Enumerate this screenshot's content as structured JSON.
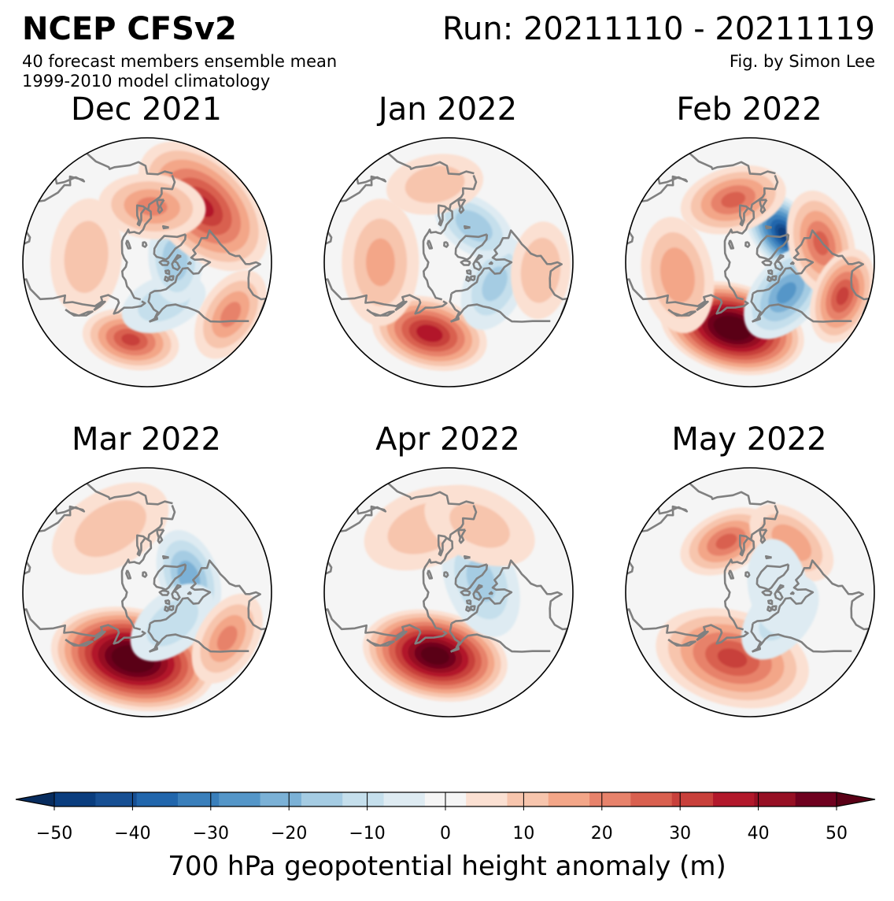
{
  "header": {
    "title": "NCEP CFSv2",
    "run": "Run: 20211110 - 20211119",
    "subtitle_1": "40 forecast members ensemble mean",
    "subtitle_2": "1999-2010 model climatology",
    "credit": "Fig. by Simon Lee"
  },
  "panels": [
    {
      "month": "Dec 2021",
      "anomalies": [
        {
          "lat": 42,
          "lon": 178,
          "value": 30,
          "spread": 1.0
        },
        {
          "lat": 62,
          "lon": -148,
          "value": -12,
          "spread": 0.9
        },
        {
          "lat": 72,
          "lon": -75,
          "value": -18,
          "spread": 0.9
        },
        {
          "lat": 42,
          "lon": -35,
          "value": 35,
          "spread": 1.6
        },
        {
          "lat": 55,
          "lon": 5,
          "value": 20,
          "spread": 1.1
        },
        {
          "lat": 52,
          "lon": 95,
          "value": 12,
          "spread": 1.2
        },
        {
          "lat": 32,
          "lon": -112,
          "value": 20,
          "spread": 1.0
        }
      ]
    },
    {
      "month": "Jan 2022",
      "anomalies": [
        {
          "lat": 45,
          "lon": 175,
          "value": 38,
          "spread": 1.2
        },
        {
          "lat": 58,
          "lon": -105,
          "value": -15,
          "spread": 1.0
        },
        {
          "lat": 62,
          "lon": -25,
          "value": -18,
          "spread": 0.9
        },
        {
          "lat": 48,
          "lon": 100,
          "value": 15,
          "spread": 1.3
        },
        {
          "lat": 35,
          "lon": -85,
          "value": 14,
          "spread": 1.0
        },
        {
          "lat": 42,
          "lon": 20,
          "value": 12,
          "spread": 1.0
        }
      ]
    },
    {
      "month": "Feb 2022",
      "anomalies": [
        {
          "lat": 48,
          "lon": 175,
          "value": 60,
          "spread": 1.5
        },
        {
          "lat": 62,
          "lon": -40,
          "value": -45,
          "spread": 1.0
        },
        {
          "lat": 60,
          "lon": -120,
          "value": -25,
          "spread": 1.1
        },
        {
          "lat": 45,
          "lon": -65,
          "value": 25,
          "spread": 1.1
        },
        {
          "lat": 50,
          "lon": 25,
          "value": 25,
          "spread": 1.1
        },
        {
          "lat": 45,
          "lon": 110,
          "value": 18,
          "spread": 1.2
        },
        {
          "lat": 32,
          "lon": -100,
          "value": 30,
          "spread": 1.0
        }
      ]
    },
    {
      "month": "Mar 2022",
      "anomalies": [
        {
          "lat": 48,
          "lon": 178,
          "value": 60,
          "spread": 1.7
        },
        {
          "lat": 62,
          "lon": -60,
          "value": -22,
          "spread": 1.0
        },
        {
          "lat": 65,
          "lon": -130,
          "value": -12,
          "spread": 1.0
        },
        {
          "lat": 45,
          "lon": 40,
          "value": 12,
          "spread": 1.3
        },
        {
          "lat": 35,
          "lon": -110,
          "value": 20,
          "spread": 1.0
        }
      ]
    },
    {
      "month": "Apr 2022",
      "anomalies": [
        {
          "lat": 50,
          "lon": 178,
          "value": 55,
          "spread": 1.5
        },
        {
          "lat": 68,
          "lon": -60,
          "value": -15,
          "spread": 1.2
        },
        {
          "lat": 48,
          "lon": 30,
          "value": 12,
          "spread": 1.3
        },
        {
          "lat": 45,
          "lon": -15,
          "value": 10,
          "spread": 1.2
        }
      ]
    },
    {
      "month": "May 2022",
      "anomalies": [
        {
          "lat": 48,
          "lon": 175,
          "value": 30,
          "spread": 1.6
        },
        {
          "lat": 55,
          "lon": 35,
          "value": 25,
          "spread": 1.0
        },
        {
          "lat": 50,
          "lon": -30,
          "value": 18,
          "spread": 1.0
        },
        {
          "lat": 65,
          "lon": -120,
          "value": -10,
          "spread": 1.0
        },
        {
          "lat": 72,
          "lon": -70,
          "value": -8,
          "spread": 1.0
        }
      ]
    }
  ],
  "colorbar": {
    "ticks": [
      "−50",
      "−40",
      "−30",
      "−20",
      "−10",
      "0",
      "10",
      "20",
      "30",
      "40",
      "50"
    ],
    "label": "700 hPa geopotential height anomaly (m)",
    "levels": [
      -50,
      -45,
      -40,
      -35,
      -30,
      -25,
      -20,
      -15,
      -10,
      -5,
      5,
      10,
      15,
      20,
      25,
      30,
      35,
      40,
      45,
      50
    ],
    "colors": [
      "#0a3d7e",
      "#174f93",
      "#2166ac",
      "#3a7fbb",
      "#5496c8",
      "#7bb1d6",
      "#a5cce3",
      "#c5dfec",
      "#deebf2",
      "#f5f5f5",
      "#fbe0d2",
      "#f7c5ad",
      "#f3a688",
      "#e7826b",
      "#d9604f",
      "#c8403b",
      "#b2182b",
      "#961024",
      "#6f011f"
    ],
    "under_color": "#072c5e",
    "over_color": "#5a0016"
  },
  "map_style": {
    "coast_color": "#808080",
    "edge_color": "#000000"
  }
}
